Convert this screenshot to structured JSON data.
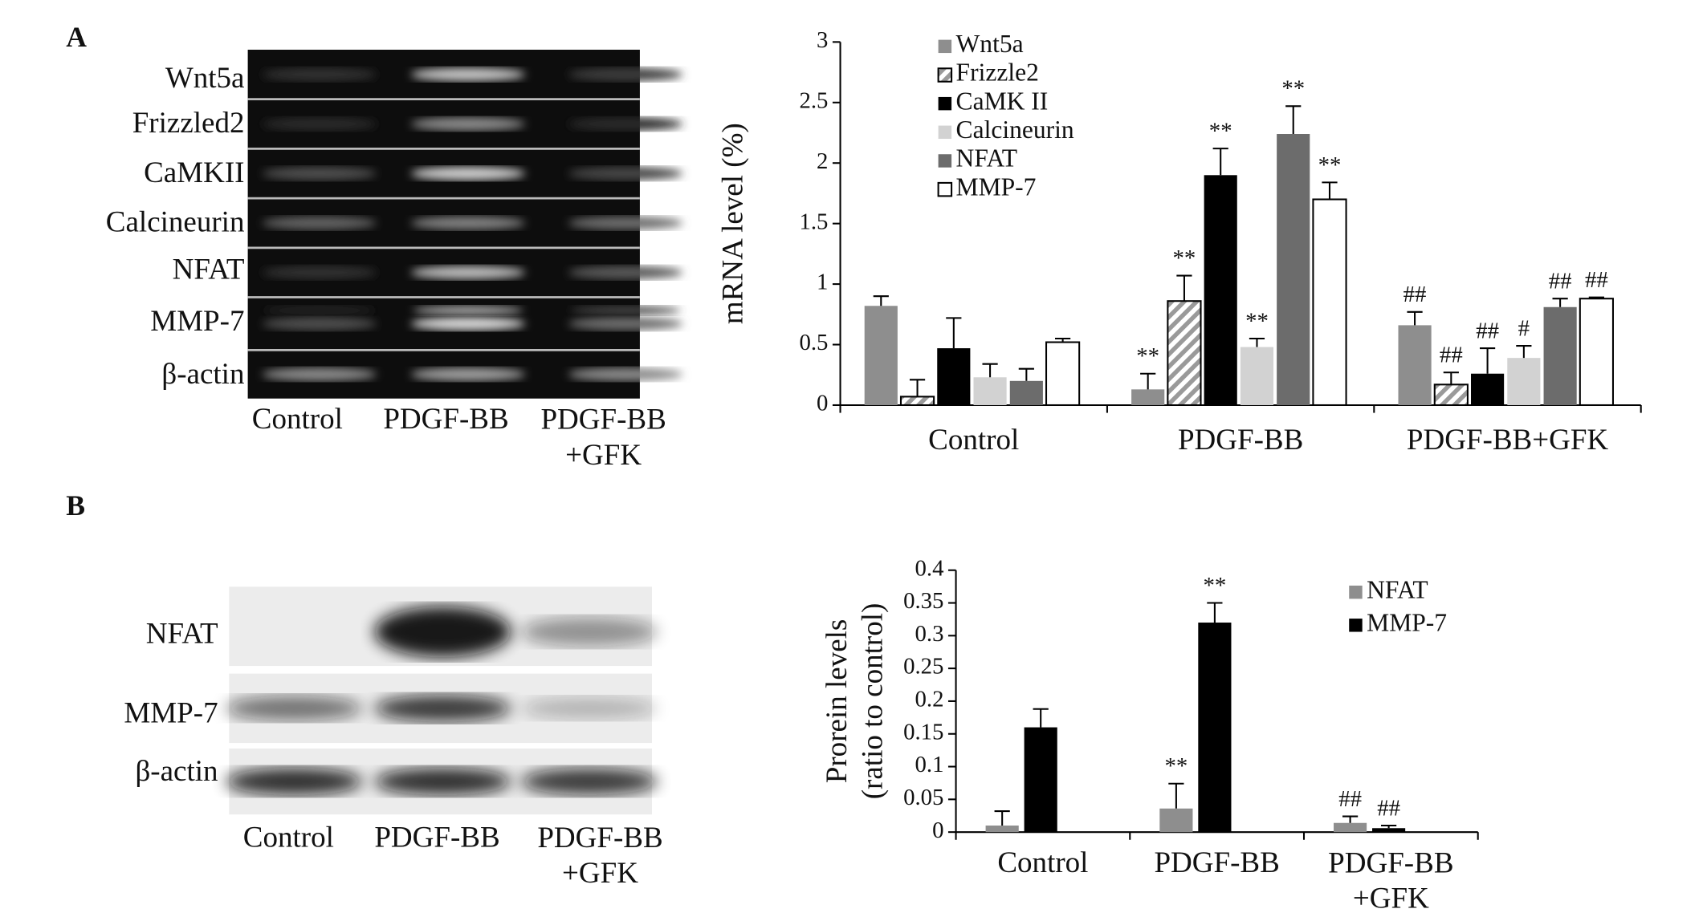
{
  "panels": [
    "A",
    "B"
  ],
  "blots": [
    {
      "rows": [
        "Wnt5a",
        "Frizzled2",
        "CaMKII",
        "Calcineurin",
        "NFAT",
        "MMP-7",
        "β-actin"
      ],
      "lanes": [
        "Control",
        "PDGF-BB",
        "PDGF-BB\n+GFK"
      ]
    },
    {
      "rows": [
        "NFAT",
        "MMP-7",
        "β-actin"
      ],
      "lanes": [
        "Control",
        "PDGF-BB",
        "PDGF-BB\n+GFK"
      ]
    }
  ],
  "chart_data": [
    {
      "type": "bar",
      "y_label": "mRNA level (%)",
      "categories": [
        "Control",
        "PDGF-BB",
        "PDGF-BB+GFK"
      ],
      "ylim": [
        0,
        3
      ],
      "yticks": [
        0,
        0.5,
        1,
        1.5,
        2,
        2.5,
        3
      ],
      "series": [
        {
          "name": "Wnt5a",
          "color": "#8e8e8e",
          "values": [
            0.82,
            0.13,
            0.66
          ],
          "errors": [
            0.08,
            0.13,
            0.11
          ],
          "significance": [
            null,
            "**",
            "##"
          ]
        },
        {
          "name": "Frizzle2",
          "color": "#9a9a9a",
          "pattern": "hatch",
          "values": [
            0.07,
            0.86,
            0.17
          ],
          "errors": [
            0.14,
            0.21,
            0.1
          ],
          "significance": [
            null,
            "**",
            "##"
          ]
        },
        {
          "name": "CaMK II",
          "color": "#000000",
          "values": [
            0.47,
            1.9,
            0.26
          ],
          "errors": [
            0.25,
            0.22,
            0.21
          ],
          "significance": [
            null,
            "**",
            "##"
          ]
        },
        {
          "name": "Calcineurin",
          "color": "#d2d2d2",
          "values": [
            0.23,
            0.48,
            0.39
          ],
          "errors": [
            0.11,
            0.07,
            0.1
          ],
          "significance": [
            null,
            "**",
            "#"
          ]
        },
        {
          "name": "NFAT",
          "color": "#6c6c6c",
          "values": [
            0.2,
            2.24,
            0.81
          ],
          "errors": [
            0.1,
            0.23,
            0.07
          ],
          "significance": [
            null,
            "**",
            "##"
          ]
        },
        {
          "name": "MMP-7",
          "color": "#ffffff",
          "values": [
            0.52,
            1.7,
            0.88
          ],
          "errors": [
            0.03,
            0.14,
            0.01
          ],
          "significance": [
            null,
            "**",
            "##"
          ]
        }
      ]
    },
    {
      "type": "bar",
      "y_label": "Prorein levels\n(ratio to control)",
      "categories": [
        "Control",
        "PDGF-BB",
        "PDGF-BB\n+GFK"
      ],
      "ylim": [
        0,
        0.4
      ],
      "yticks": [
        0,
        0.05,
        0.1,
        0.15,
        0.2,
        0.25,
        0.3,
        0.35,
        0.4
      ],
      "series": [
        {
          "name": "NFAT",
          "color": "#8e8e8e",
          "values": [
            0.01,
            0.036,
            0.014
          ],
          "errors": [
            0.022,
            0.038,
            0.01
          ],
          "significance": [
            null,
            "**",
            "##"
          ]
        },
        {
          "name": "MMP-7",
          "color": "#000000",
          "values": [
            0.16,
            0.32,
            0.006
          ],
          "errors": [
            0.028,
            0.03,
            0.004
          ],
          "significance": [
            null,
            "**",
            "##"
          ]
        }
      ]
    }
  ]
}
